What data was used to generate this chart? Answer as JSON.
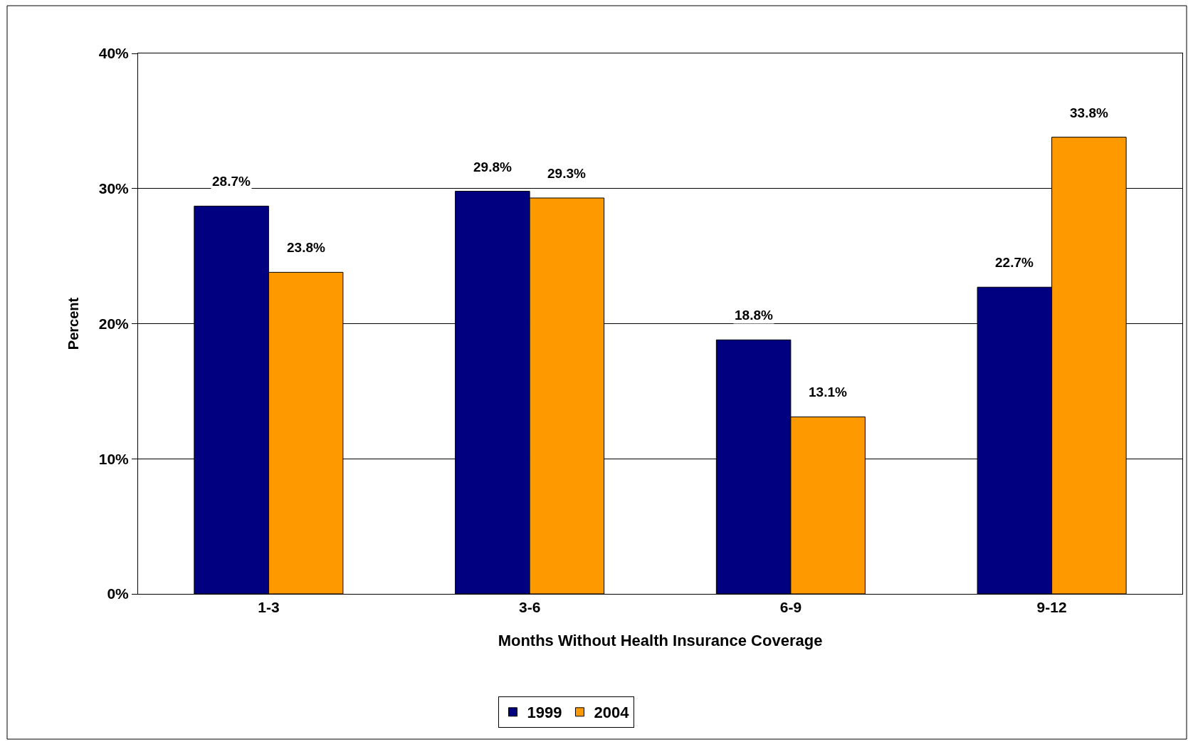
{
  "chart_data": {
    "type": "bar",
    "xlabel": "Months Without Health Insurance Coverage",
    "ylabel": "Percent",
    "categories": [
      "1-3",
      "3-6",
      "6-9",
      "9-12"
    ],
    "series": [
      {
        "name": "1999",
        "color": "#000080",
        "values": [
          28.7,
          29.8,
          18.8,
          22.7
        ],
        "value_labels": [
          "28.7%",
          "29.8%",
          "18.8%",
          "22.7%"
        ]
      },
      {
        "name": "2004",
        "color": "#ff9900",
        "values": [
          23.8,
          29.3,
          13.1,
          33.8
        ],
        "value_labels": [
          "23.8%",
          "29.3%",
          "13.1%",
          "33.8%"
        ]
      }
    ],
    "ylim": [
      0,
      40
    ],
    "yticks": [
      {
        "value": 0,
        "label": "0%"
      },
      {
        "value": 10,
        "label": "10%"
      },
      {
        "value": 20,
        "label": "20%"
      },
      {
        "value": 30,
        "label": "30%"
      },
      {
        "value": 40,
        "label": "40%"
      }
    ],
    "grid": "y",
    "legend": "bottom"
  }
}
